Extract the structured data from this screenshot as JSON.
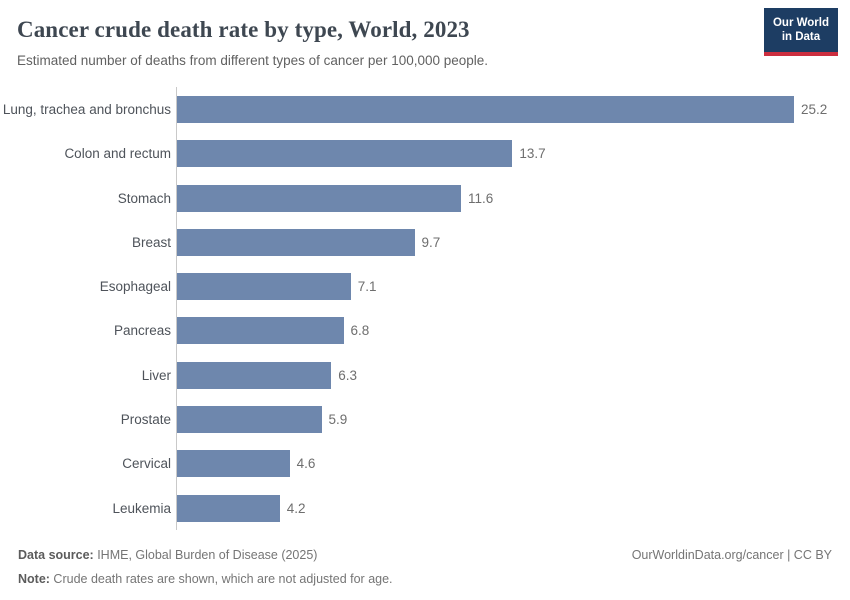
{
  "header": {
    "title": "Cancer crude death rate by type, World, 2023",
    "subtitle": "Estimated number of deaths from different types of cancer per 100,000 people.",
    "logo": {
      "line1": "Our World",
      "line2": "in Data",
      "bg_color": "#1d3d63",
      "accent_color": "#cc2e3f"
    }
  },
  "chart_data": {
    "type": "bar",
    "orientation": "horizontal",
    "title": "Cancer crude death rate by type, World, 2023",
    "xlabel": "",
    "ylabel": "",
    "xlim": [
      0,
      25.2
    ],
    "grid": false,
    "legend": false,
    "bar_color": "#6e87ad",
    "axis_color": "#c9c9c9",
    "categories": [
      "Lung, trachea and bronchus",
      "Colon and rectum",
      "Stomach",
      "Breast",
      "Esophageal",
      "Pancreas",
      "Liver",
      "Prostate",
      "Cervical",
      "Leukemia"
    ],
    "values": [
      25.2,
      13.7,
      11.6,
      9.7,
      7.1,
      6.8,
      6.3,
      5.9,
      4.6,
      4.2
    ],
    "value_labels": [
      "25.2",
      "13.7",
      "11.6",
      "9.7",
      "7.1",
      "6.8",
      "6.3",
      "5.9",
      "4.6",
      "4.2"
    ]
  },
  "footer": {
    "datasource_label": "Data source:",
    "datasource_text": " IHME, Global Burden of Disease (2025)",
    "note_label": "Note:",
    "note_text": " Crude death rates are shown, which are not adjusted for age.",
    "license": "OurWorldinData.org/cancer | CC BY"
  }
}
